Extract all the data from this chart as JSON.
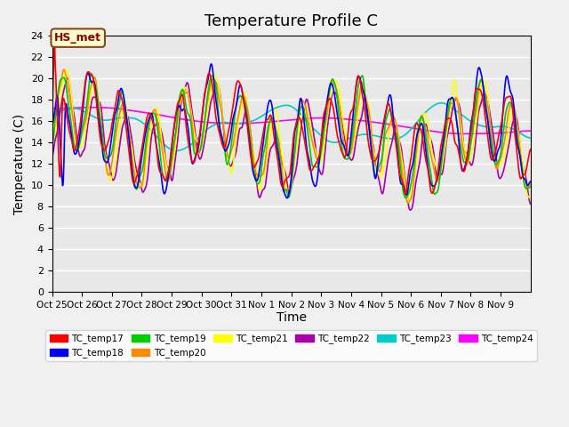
{
  "title": "Temperature Profile C",
  "xlabel": "Time",
  "ylabel": "Temperature (C)",
  "ylim": [
    0,
    24
  ],
  "yticks": [
    0,
    2,
    4,
    6,
    8,
    10,
    12,
    14,
    16,
    18,
    20,
    22,
    24
  ],
  "x_labels": [
    "Oct 25",
    "Oct 26",
    "Oct 27",
    "Oct 28",
    "Oct 29",
    "Oct 30",
    "Oct 31",
    "Nov 1",
    "Nov 2",
    "Nov 3",
    "Nov 4",
    "Nov 5",
    "Nov 6",
    "Nov 7",
    "Nov 8",
    "Nov 9"
  ],
  "series_colors": {
    "TC_temp17": "#ff0000",
    "TC_temp18": "#0000ff",
    "TC_temp19": "#00cc00",
    "TC_temp20": "#ff8800",
    "TC_temp21": "#ffff00",
    "TC_temp22": "#aa00aa",
    "TC_temp23": "#00cccc",
    "TC_temp24": "#ff00ff"
  },
  "legend_order": [
    "TC_temp17",
    "TC_temp18",
    "TC_temp19",
    "TC_temp20",
    "TC_temp21",
    "TC_temp22",
    "TC_temp23",
    "TC_temp24"
  ],
  "annotation_text": "HS_met",
  "bg_color": "#e8e8e8",
  "grid_color": "#ffffff",
  "title_fontsize": 13,
  "axis_fontsize": 10
}
